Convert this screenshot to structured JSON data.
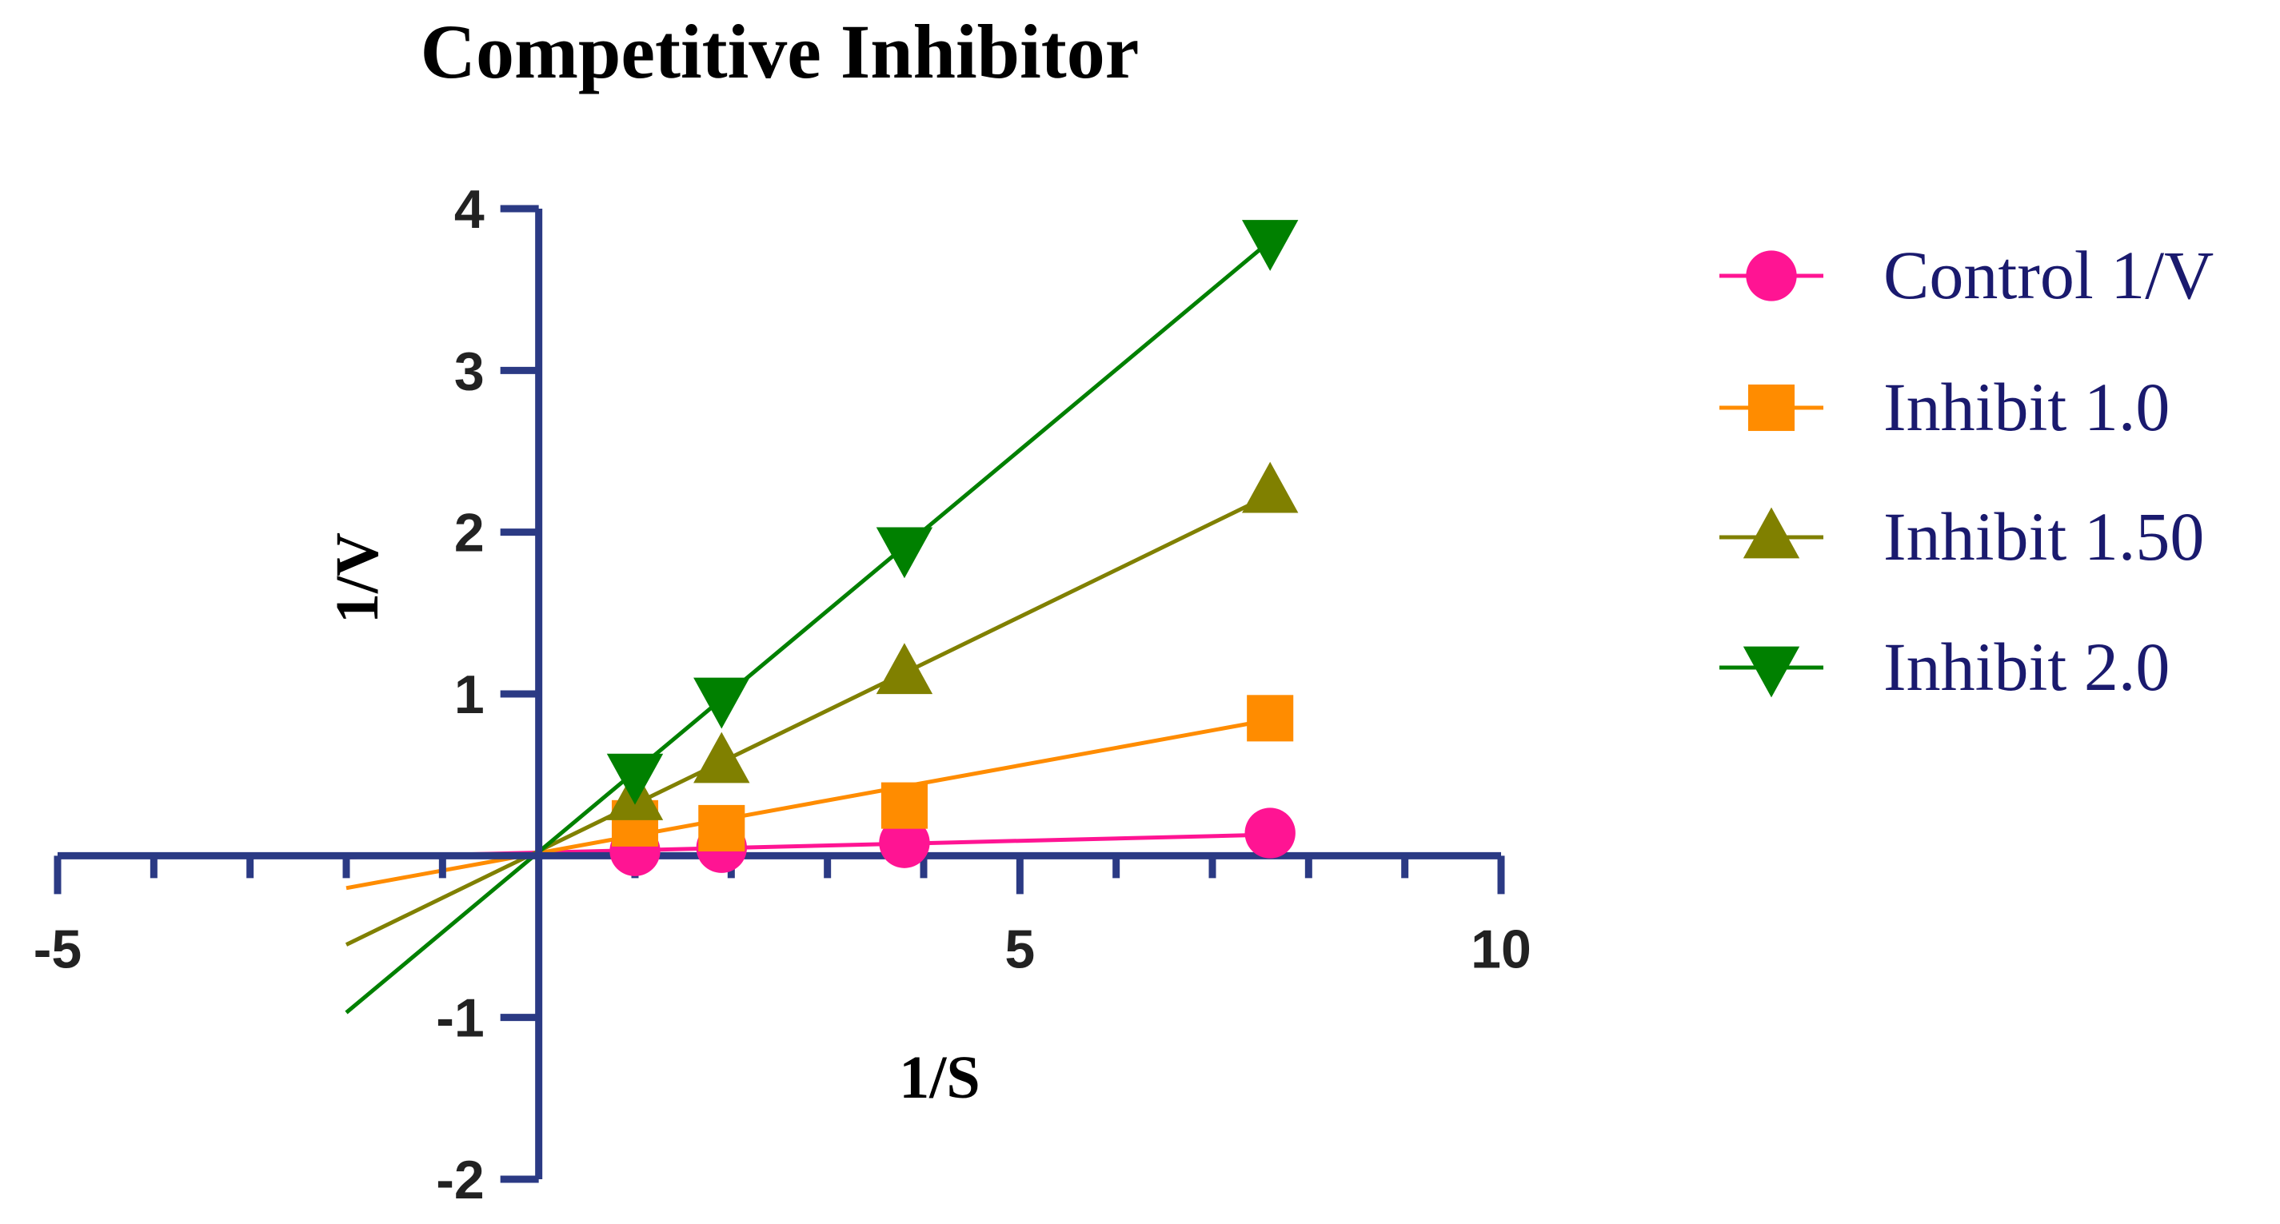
{
  "chart_data": {
    "type": "line",
    "title": "Competitive Inhibitor",
    "xlabel": "1/S",
    "ylabel": "1/V",
    "xlim": [
      -5,
      10
    ],
    "ylim": [
      -2,
      4
    ],
    "x_ticks": [
      -5,
      5,
      10
    ],
    "y_ticks": [
      -2,
      -1,
      1,
      2,
      3,
      4
    ],
    "x_tick_labels": [
      "-5",
      "5",
      "10"
    ],
    "y_tick_labels": [
      "-2",
      "-1",
      "1",
      "2",
      "3",
      "4"
    ],
    "x_minor_step": 1,
    "y_minor_step": 1,
    "axis_color": "#2b3a84",
    "legend_text_color": "#1a1a6e",
    "legend_position": "right",
    "series": [
      {
        "name": "Control 1/V",
        "marker": "circle",
        "color": "#ff1493",
        "x": [
          1,
          1.9,
          3.8,
          7.6
        ],
        "y": [
          0.03,
          0.05,
          0.08,
          0.14
        ],
        "fit_x": [
          -2,
          7.6
        ],
        "fit_y": [
          -0.01,
          0.13
        ]
      },
      {
        "name": "Inhibit 1.0",
        "marker": "square",
        "color": "#ff8c00",
        "x": [
          1,
          1.9,
          3.8,
          7.6
        ],
        "y": [
          0.2,
          0.17,
          0.31,
          0.85
        ],
        "fit_x": [
          -2,
          7.6
        ],
        "fit_y": [
          -0.2,
          0.84
        ]
      },
      {
        "name": "Inhibit 1.50",
        "marker": "triangle-up",
        "color": "#808000",
        "x": [
          1,
          1.9,
          3.8,
          7.6
        ],
        "y": [
          0.35,
          0.58,
          1.13,
          2.25
        ],
        "fit_x": [
          -2,
          7.6
        ],
        "fit_y": [
          -0.55,
          2.23
        ]
      },
      {
        "name": "Inhibit 2.0",
        "marker": "triangle-down",
        "color": "#008000",
        "x": [
          1,
          1.9,
          3.8,
          7.6
        ],
        "y": [
          0.5,
          0.97,
          1.9,
          3.8
        ],
        "fit_x": [
          -2,
          7.6
        ],
        "fit_y": [
          -0.97,
          3.8
        ]
      }
    ]
  }
}
